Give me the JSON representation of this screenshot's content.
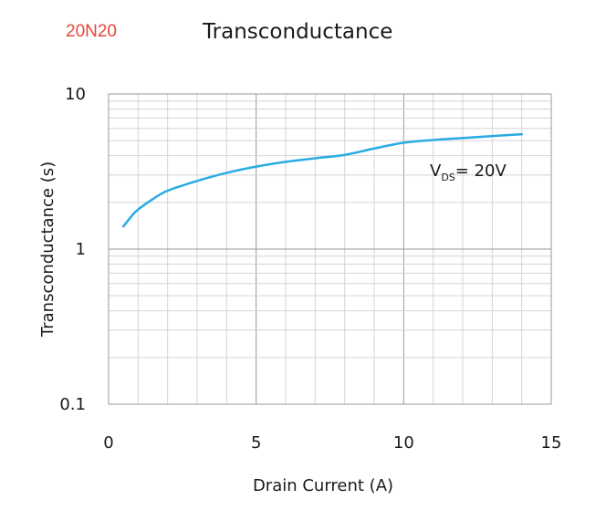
{
  "header": {
    "part_number": "20N20"
  },
  "chart_data": {
    "type": "line",
    "title": "Transconductance",
    "xlabel": "Drain Current (A)",
    "ylabel": "Transconductance (s)",
    "xlim": [
      0,
      15
    ],
    "ylim": [
      0.1,
      10
    ],
    "yscale": "log",
    "grid": true,
    "x_ticks": [
      "0",
      "5",
      "10",
      "15"
    ],
    "y_ticks": [
      "0.1",
      "1",
      "10"
    ],
    "annotation": {
      "main": "V",
      "sub": "DS",
      "rest": "= 20V"
    },
    "line_color": "#29abe2",
    "series": [
      {
        "x": [
          0.5,
          0.8,
          1.0,
          1.5,
          2.0,
          3.0,
          4.0,
          5.0,
          6.0,
          7.0,
          8.0,
          9.0,
          10.0,
          11.0,
          12.0,
          13.0,
          14.0
        ],
        "values": [
          1.4,
          1.65,
          1.8,
          2.1,
          2.38,
          2.75,
          3.1,
          3.4,
          3.65,
          3.85,
          4.05,
          4.45,
          4.85,
          5.05,
          5.2,
          5.35,
          5.5
        ]
      }
    ]
  }
}
